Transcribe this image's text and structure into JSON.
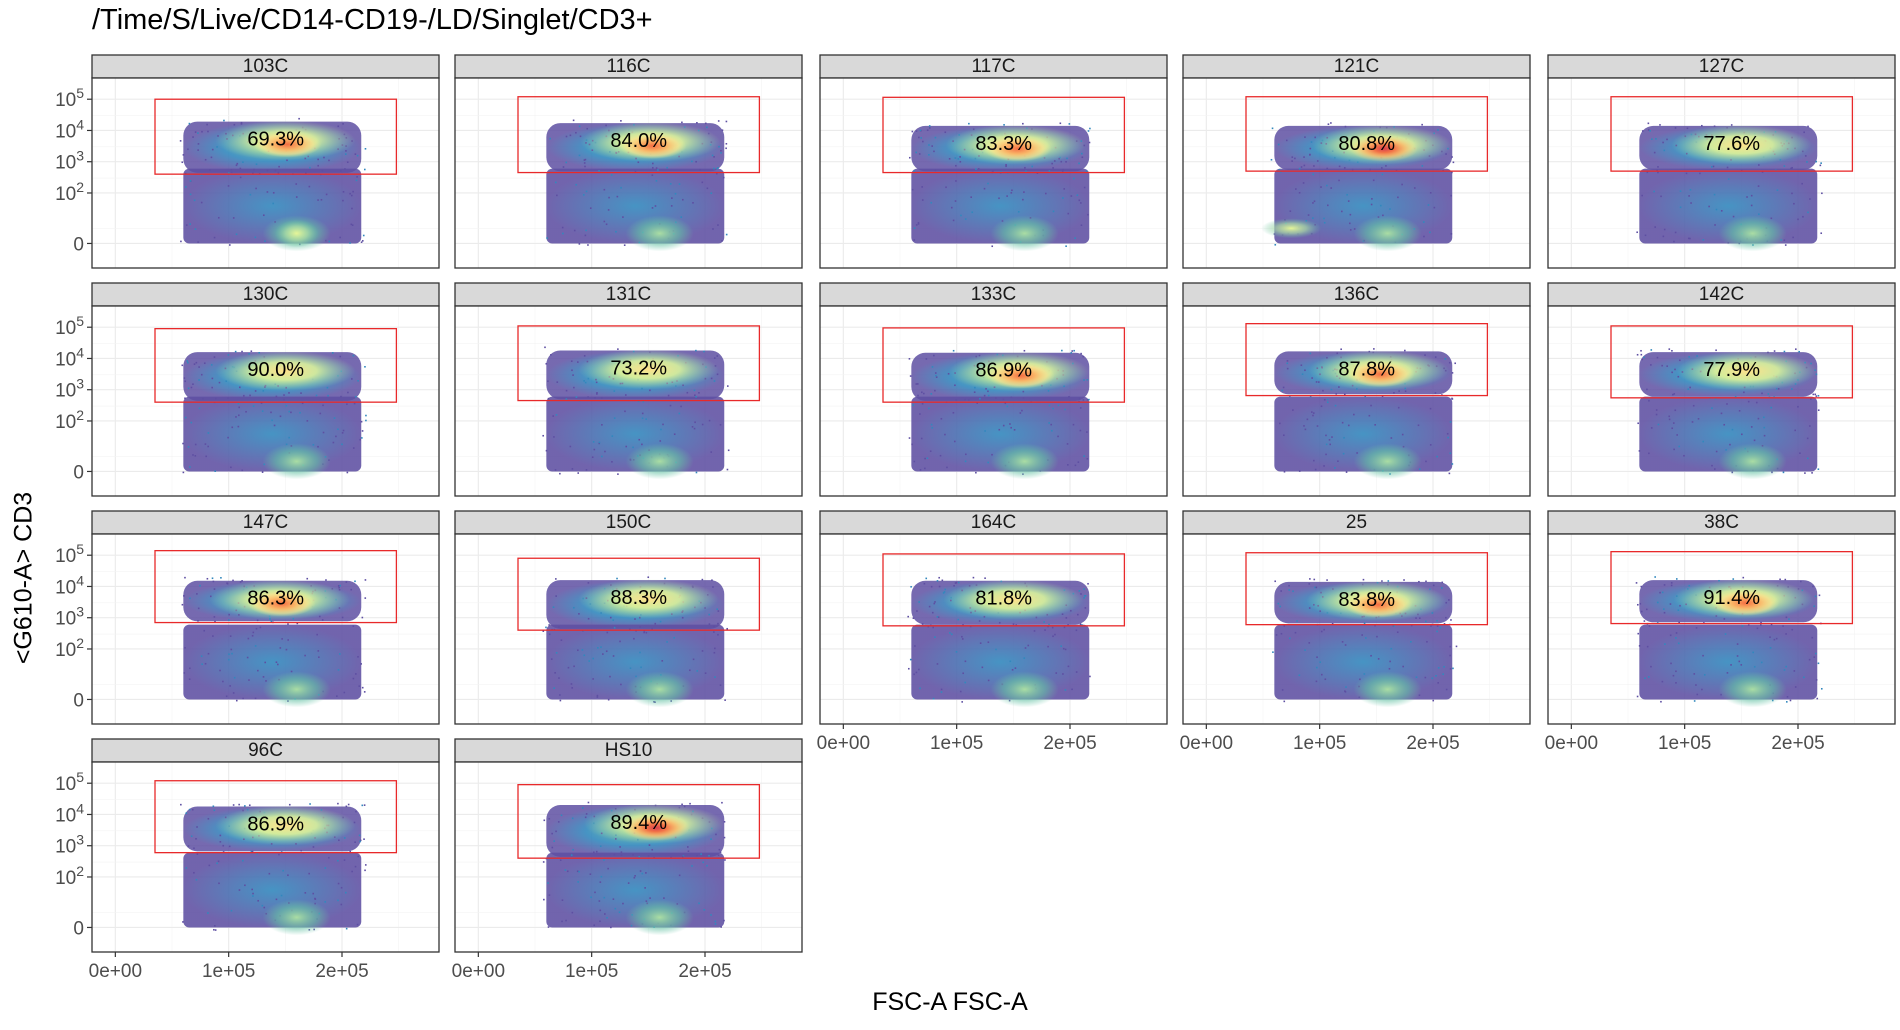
{
  "chart_data": {
    "type": "scatter",
    "subtype": "faceted flow-cytometry density plot with rectangular gates",
    "title": "/Time/S/Live/CD14-CD19-/LD/Singlet/CD3+",
    "xlabel": "FSC-A FSC-A",
    "ylabel": "<G610-A> CD3",
    "x_ticks": [
      {
        "value": 0,
        "label": "0e+00"
      },
      {
        "value": 100000,
        "label": "1e+05"
      },
      {
        "value": 200000,
        "label": "2e+05"
      }
    ],
    "y_ticks": [
      {
        "value": 0,
        "label": "0"
      },
      {
        "value": 100,
        "label": "10",
        "sup": "2"
      },
      {
        "value": 1000,
        "label": "10",
        "sup": "3"
      },
      {
        "value": 10000,
        "label": "10",
        "sup": "4"
      },
      {
        "value": 100000,
        "label": "10",
        "sup": "5"
      }
    ],
    "xlim": [
      -10000,
      275000
    ],
    "y_scale": "biexponential (log-like above ~100)",
    "grid": true,
    "layout": {
      "columns": 5,
      "rows": 4
    },
    "density_colormap": [
      "#5E4FA2",
      "#3288BD",
      "#66C2A5",
      "#ABDDA4",
      "#E6F598",
      "#FEE08B",
      "#FDAE61",
      "#F46D43",
      "#D53E4F"
    ],
    "gate_color": "#E8292A",
    "facets": [
      {
        "name": "103C",
        "percent": "69.3%",
        "gate": {
          "x": [
            35000,
            248000
          ],
          "y": [
            400,
            100000
          ]
        },
        "hot_x": 150000,
        "hot_y": 4800,
        "hot_level": 0.7
      },
      {
        "name": "116C",
        "percent": "84.0%",
        "gate": {
          "x": [
            35000,
            248000
          ],
          "y": [
            450,
            120000
          ]
        },
        "hot_x": 152000,
        "hot_y": 4300,
        "hot_level": 0.82
      },
      {
        "name": "117C",
        "percent": "83.3%",
        "gate": {
          "x": [
            35000,
            248000
          ],
          "y": [
            450,
            115000
          ]
        },
        "hot_x": 152000,
        "hot_y": 3500,
        "hot_level": 0.8
      },
      {
        "name": "121C",
        "percent": "80.8%",
        "gate": {
          "x": [
            35000,
            248000
          ],
          "y": [
            500,
            120000
          ]
        },
        "hot_x": 155000,
        "hot_y": 3500,
        "hot_level": 1.0
      },
      {
        "name": "127C",
        "percent": "77.6%",
        "gate": {
          "x": [
            35000,
            248000
          ],
          "y": [
            500,
            120000
          ]
        },
        "hot_x": 150000,
        "hot_y": 3500,
        "hot_level": 0.55
      },
      {
        "name": "130C",
        "percent": "90.0%",
        "gate": {
          "x": [
            35000,
            248000
          ],
          "y": [
            400,
            90000
          ]
        },
        "hot_x": 150000,
        "hot_y": 4000,
        "hot_level": 0.55
      },
      {
        "name": "131C",
        "percent": "73.2%",
        "gate": {
          "x": [
            35000,
            248000
          ],
          "y": [
            450,
            110000
          ]
        },
        "hot_x": 150000,
        "hot_y": 4500,
        "hot_level": 0.62
      },
      {
        "name": "133C",
        "percent": "86.9%",
        "gate": {
          "x": [
            35000,
            248000
          ],
          "y": [
            400,
            95000
          ]
        },
        "hot_x": 155000,
        "hot_y": 3800,
        "hot_level": 0.85
      },
      {
        "name": "136C",
        "percent": "87.8%",
        "gate": {
          "x": [
            35000,
            248000
          ],
          "y": [
            650,
            130000
          ]
        },
        "hot_x": 152000,
        "hot_y": 4200,
        "hot_level": 0.82
      },
      {
        "name": "142C",
        "percent": "77.9%",
        "gate": {
          "x": [
            35000,
            248000
          ],
          "y": [
            550,
            110000
          ]
        },
        "hot_x": 155000,
        "hot_y": 4000,
        "hot_level": 0.65
      },
      {
        "name": "147C",
        "percent": "86.3%",
        "gate": {
          "x": [
            35000,
            248000
          ],
          "y": [
            700,
            140000
          ]
        },
        "hot_x": 145000,
        "hot_y": 3800,
        "hot_level": 0.82
      },
      {
        "name": "150C",
        "percent": "88.3%",
        "gate": {
          "x": [
            35000,
            248000
          ],
          "y": [
            400,
            80000
          ]
        },
        "hot_x": 150000,
        "hot_y": 4000,
        "hot_level": 0.55
      },
      {
        "name": "164C",
        "percent": "81.8%",
        "gate": {
          "x": [
            35000,
            248000
          ],
          "y": [
            550,
            110000
          ]
        },
        "hot_x": 150000,
        "hot_y": 3800,
        "hot_level": 0.58
      },
      {
        "name": "25",
        "percent": "83.8%",
        "gate": {
          "x": [
            35000,
            248000
          ],
          "y": [
            600,
            120000
          ]
        },
        "hot_x": 150000,
        "hot_y": 3500,
        "hot_level": 0.72
      },
      {
        "name": "38C",
        "percent": "91.4%",
        "gate": {
          "x": [
            35000,
            248000
          ],
          "y": [
            650,
            130000
          ]
        },
        "hot_x": 152000,
        "hot_y": 4000,
        "hot_level": 0.88
      },
      {
        "name": "96C",
        "percent": "86.9%",
        "gate": {
          "x": [
            35000,
            248000
          ],
          "y": [
            600,
            120000
          ]
        },
        "hot_x": 150000,
        "hot_y": 4500,
        "hot_level": 0.6
      },
      {
        "name": "HS10",
        "percent": "89.4%",
        "gate": {
          "x": [
            35000,
            248000
          ],
          "y": [
            400,
            90000
          ]
        },
        "hot_x": 155000,
        "hot_y": 5000,
        "hot_level": 0.95
      }
    ]
  }
}
